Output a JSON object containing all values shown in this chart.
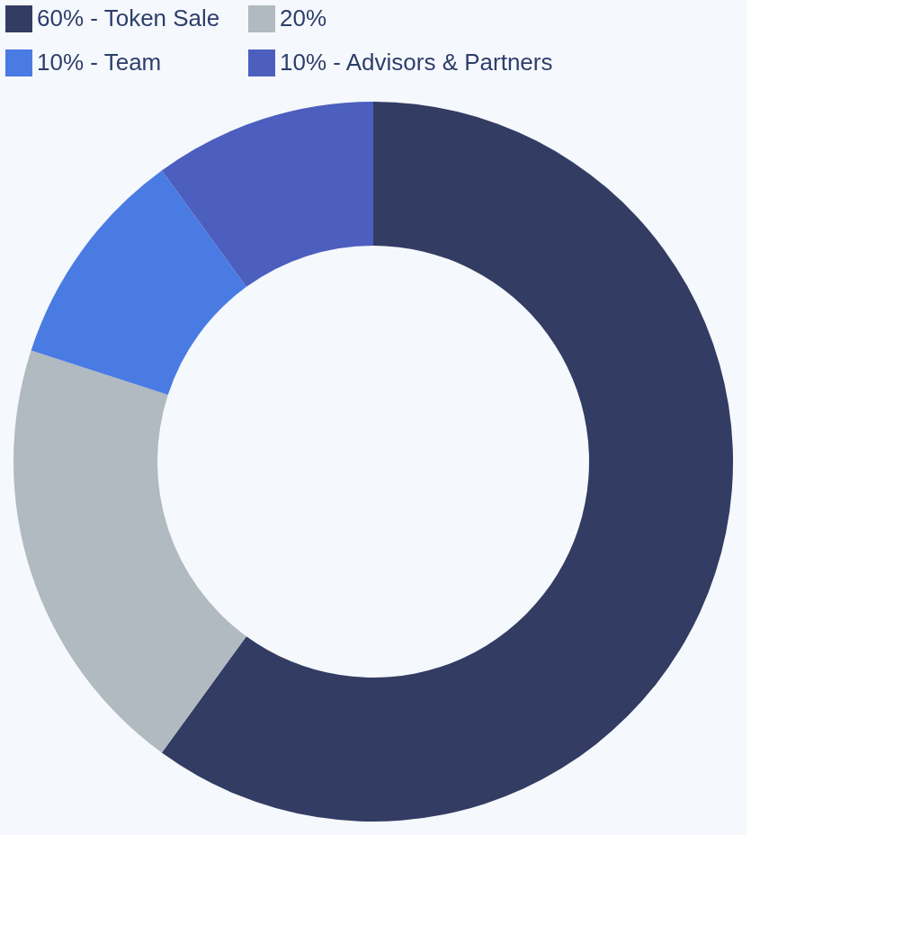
{
  "chart_data": {
    "type": "donut",
    "categories": [
      "60% - Token Sale",
      "20%",
      "10% - Team",
      "10% - Advisors & Partners"
    ],
    "values": [
      60,
      20,
      10,
      10
    ],
    "colors": [
      "#333c63",
      "#b0bac0",
      "#4a7be3",
      "#4c5fbf"
    ],
    "legend": "top"
  }
}
